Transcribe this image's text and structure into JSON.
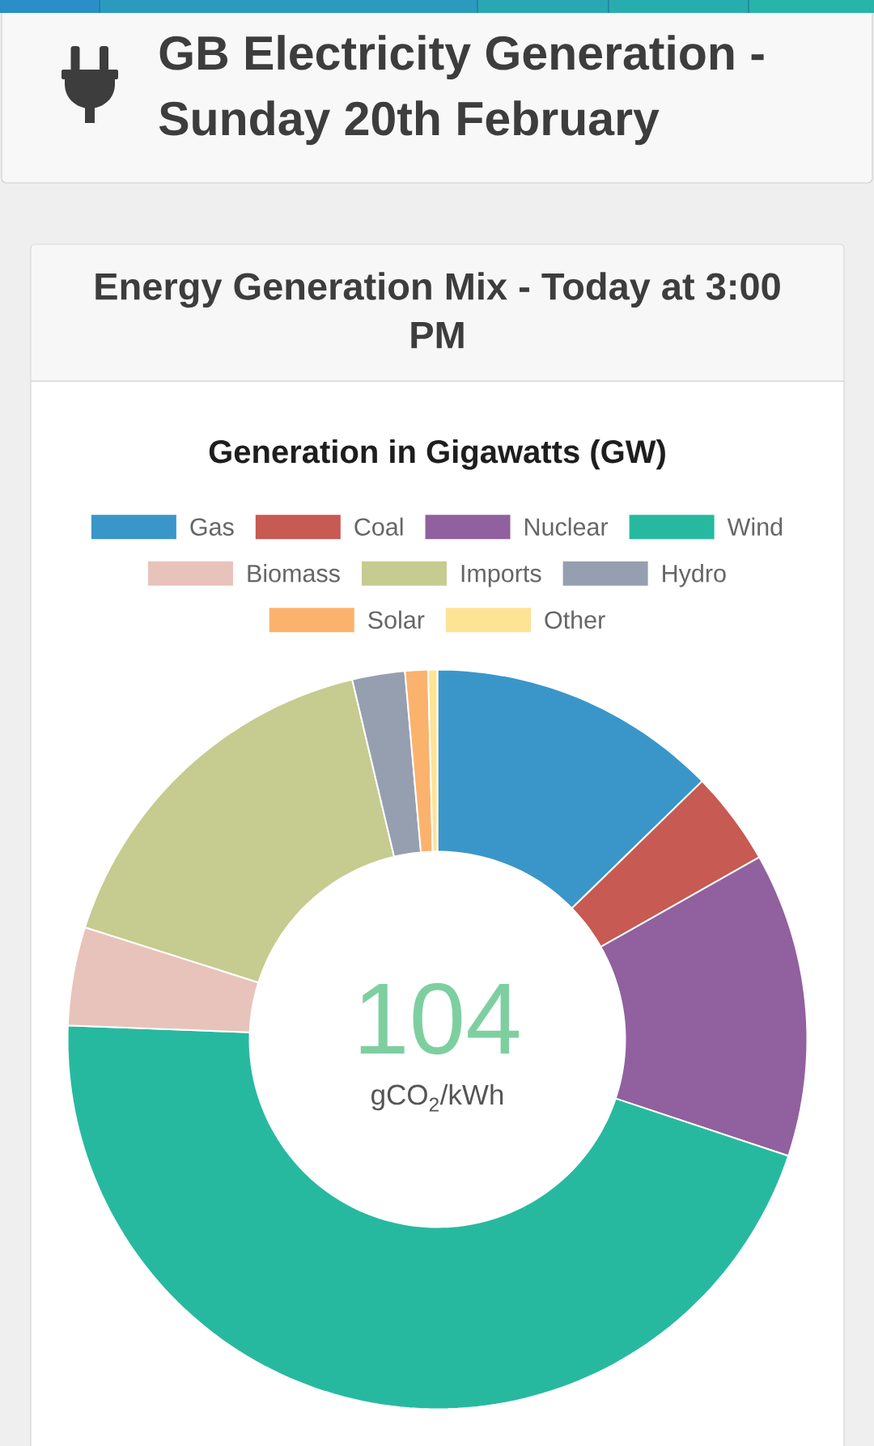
{
  "chart_data": {
    "type": "donut",
    "title": "GB Electricity Generation - Sunday 20th February",
    "subtitle": "Energy Generation Mix - Today at 3:00 PM",
    "annotations": [
      "Generation in Gigawatts (GW)",
      "104",
      "gCO$_{2}$/kWh"
    ],
    "categories": [
      "Gas",
      "Coal",
      "Nuclear",
      "Wind",
      "Biomass",
      "Imports",
      "Hydro",
      "Solar",
      "Other"
    ],
    "values": [
      12.7,
      4.1,
      13.3,
      45.5,
      4.3,
      16.4,
      2.3,
      1.0,
      0.4
    ],
    "colors": [
      "#3a96c9",
      "#c75a53",
      "#91609e",
      "#27b9a0",
      "#e8c3bb",
      "#c6cb8f",
      "#959fb0",
      "#fbb26d",
      "#fde394"
    ],
    "legend": "top"
  }
}
